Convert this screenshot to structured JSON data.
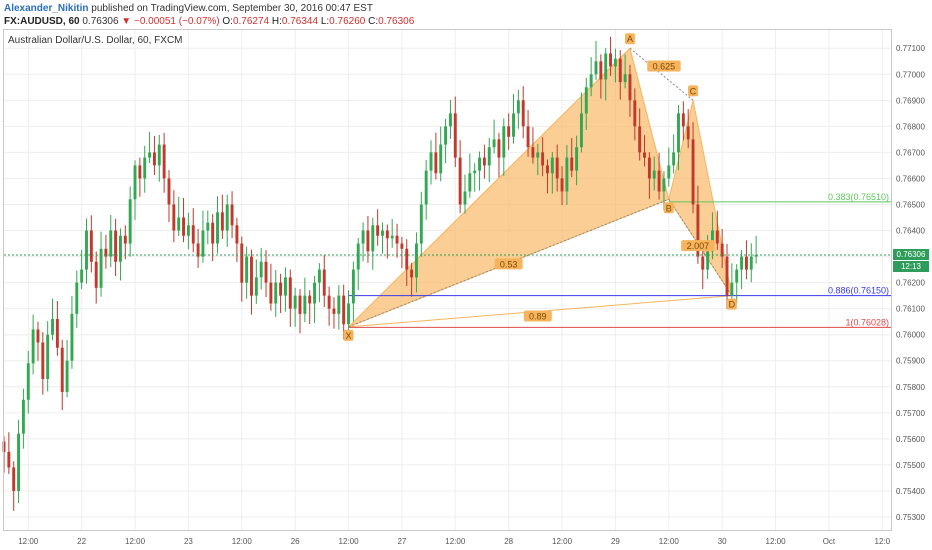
{
  "header": {
    "author": "Alexander_Nikitin",
    "published": " published on TradingView.com, September 30, 2016 00:47 EST",
    "symbol": "FX:AUDUSD, 60",
    "last": "0.76306",
    "change_arrow": "▼",
    "change": "−0.00051 (−0.07%)",
    "o_label": "O:",
    "o_value": "0.76274",
    "h_label": "H:",
    "h_value": "0.76344",
    "l_label": "L:",
    "l_value": "0.76260",
    "c_label": "C:",
    "c_value": "0.76306"
  },
  "chart_data": {
    "type": "candlestick",
    "title": "Australian Dollar/U.S. Dollar, 60, FXCM",
    "ylim": [
      0.7525,
      0.7717
    ],
    "y_ticks": [
      "0.77100",
      "0.77000",
      "0.76900",
      "0.76800",
      "0.76700",
      "0.76600",
      "0.76500",
      "0.76400",
      "0.76300",
      "0.76200",
      "0.76100",
      "0.76000",
      "0.75900",
      "0.75800",
      "0.75700",
      "0.75600",
      "0.75500",
      "0.75400",
      "0.75300"
    ],
    "x_ticks": [
      {
        "label": "12:00",
        "i": 5
      },
      {
        "label": "22",
        "i": 16
      },
      {
        "label": "12:00",
        "i": 27
      },
      {
        "label": "23",
        "i": 38
      },
      {
        "label": "12:00",
        "i": 49
      },
      {
        "label": "26",
        "i": 60
      },
      {
        "label": "12:00",
        "i": 71
      },
      {
        "label": "27",
        "i": 82
      },
      {
        "label": "12:00",
        "i": 93
      },
      {
        "label": "28",
        "i": 104
      },
      {
        "label": "12:00",
        "i": 115
      },
      {
        "label": "29",
        "i": 126
      },
      {
        "label": "12:00",
        "i": 137
      },
      {
        "label": "30",
        "i": 148
      },
      {
        "label": "12:00",
        "i": 159
      },
      {
        "label": "Oct",
        "i": 170
      },
      {
        "label": "12:0",
        "i": 181
      }
    ],
    "x_range": [
      0,
      183
    ],
    "closes": [
      0.7555,
      0.7549,
      0.754,
      0.7562,
      0.7575,
      0.7589,
      0.7602,
      0.7597,
      0.7583,
      0.76,
      0.7606,
      0.7595,
      0.7578,
      0.759,
      0.7608,
      0.762,
      0.7625,
      0.764,
      0.7628,
      0.7618,
      0.7633,
      0.763,
      0.764,
      0.7628,
      0.7638,
      0.7635,
      0.7652,
      0.7665,
      0.766,
      0.7668,
      0.767,
      0.7665,
      0.7673,
      0.766,
      0.765,
      0.764,
      0.7645,
      0.7638,
      0.7642,
      0.7635,
      0.763,
      0.764,
      0.7643,
      0.7635,
      0.7647,
      0.764,
      0.765,
      0.7642,
      0.7635,
      0.762,
      0.763,
      0.7615,
      0.7622,
      0.7628,
      0.762,
      0.7612,
      0.762,
      0.7615,
      0.7622,
      0.761,
      0.7615,
      0.7608,
      0.7615,
      0.7612,
      0.762,
      0.7625,
      0.7615,
      0.761,
      0.7608,
      0.7615,
      0.7604,
      0.7612,
      0.7625,
      0.7635,
      0.764,
      0.7632,
      0.7642,
      0.7638,
      0.764,
      0.7637,
      0.7638,
      0.7635,
      0.7633,
      0.7625,
      0.7622,
      0.7635,
      0.765,
      0.7663,
      0.767,
      0.7662,
      0.7673,
      0.768,
      0.7685,
      0.7668,
      0.765,
      0.7655,
      0.7662,
      0.7663,
      0.7668,
      0.7665,
      0.7672,
      0.7675,
      0.7668,
      0.768,
      0.7676,
      0.7685,
      0.769,
      0.768,
      0.7672,
      0.7668,
      0.767,
      0.7665,
      0.7662,
      0.7668,
      0.766,
      0.7655,
      0.7668,
      0.7663,
      0.7672,
      0.7685,
      0.7695,
      0.77,
      0.7705,
      0.7698,
      0.7708,
      0.7703,
      0.7706,
      0.7697,
      0.77,
      0.769,
      0.768,
      0.767,
      0.7668,
      0.766,
      0.7663,
      0.7655,
      0.766,
      0.7665,
      0.767,
      0.7685,
      0.768,
      0.7675,
      0.765,
      0.763,
      0.7625,
      0.7632,
      0.764,
      0.7635,
      0.763,
      0.7615,
      0.762,
      0.7625,
      0.763,
      0.7625,
      0.763,
      0.76306
    ],
    "harmonic": {
      "points": [
        {
          "label": "X",
          "i": 71,
          "price": 0.7603
        },
        {
          "label": "A",
          "i": 129,
          "price": 0.771
        },
        {
          "label": "B",
          "i": 137,
          "price": 0.7652
        },
        {
          "label": "C",
          "i": 142,
          "price": 0.769
        },
        {
          "label": "D",
          "i": 150,
          "price": 0.7615
        }
      ],
      "ratios": [
        {
          "label": "0.53",
          "i": 104,
          "price": 0.7627
        },
        {
          "label": "0.625",
          "i": 136,
          "price": 0.7703
        },
        {
          "label": "0.89",
          "i": 110,
          "price": 0.7607
        },
        {
          "label": "2.007",
          "i": 143,
          "price": 0.7634
        }
      ]
    },
    "levels": [
      {
        "label": "0.383(0.76510)",
        "price": 0.7651,
        "color": "#5ac85a"
      },
      {
        "label": "0.886(0.76150)",
        "price": 0.7615,
        "color": "#3a3af0"
      },
      {
        "label": "1(0.76028)",
        "price": 0.76028,
        "color": "#e04848"
      }
    ],
    "last_price": {
      "label": "0.76306",
      "price": 0.76306,
      "time_label": "12:13"
    },
    "colors": {
      "up": "#33a853",
      "down": "#c0392b",
      "pattern": "#f7b45c",
      "grid": "#eeeeee"
    }
  }
}
